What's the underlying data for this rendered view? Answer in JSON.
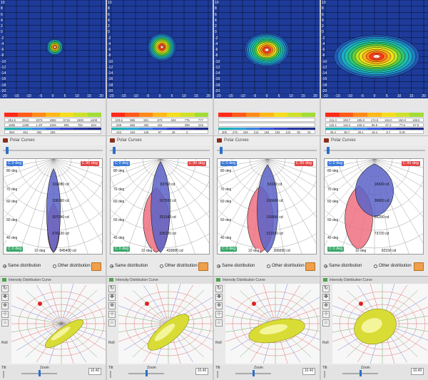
{
  "panels": [
    {
      "x_ticks": [
        "-20",
        "-15",
        "-10",
        "-5",
        "0",
        "5",
        "10",
        "15",
        "20"
      ],
      "y_ticks": [
        "10",
        "8",
        "6",
        "4",
        "2",
        "0",
        "-2",
        "-4",
        "-6",
        "-8",
        "-10",
        "-12",
        "-14",
        "-16",
        "-18",
        "-20"
      ],
      "scale_values_1": [
        "251.6",
        "2813",
        "3373",
        "1852",
        "5715",
        "1600",
        "1408"
      ],
      "scale_values_2": [
        "1960",
        "1258",
        "1 SP",
        "1006",
        "905",
        "784",
        "634"
      ],
      "scale_values_3": [
        "583",
        "451",
        "392",
        "283",
        "",
        "",
        ""
      ],
      "polar_title": "Polar Curves",
      "tag_c0": "C 0 deg",
      "tag_c90": "C 90 deg",
      "tag_c0_bottom": "C 0 deg",
      "deg_labels": [
        "80 deg",
        "70 deg",
        "60 deg",
        "50 deg",
        "40 deg"
      ],
      "deg_bottom": "10 deg",
      "cd_labels": [
        "169080 cd",
        "338160 cd",
        "507240 cd",
        "676320 cd",
        "845400 cd"
      ],
      "radio_same": "Same distribution",
      "radio_other": "Other distribution",
      "cone_title": "Intensity Distribution Curve",
      "roll_label": "Roll",
      "tilt_label": "Tilt",
      "zoom_label": "Zoom",
      "zoom_value": "10.40"
    },
    {
      "x_ticks": [
        "-20",
        "-15",
        "-10",
        "-5",
        "0",
        "5",
        "10",
        "15",
        "20"
      ],
      "y_ticks": [
        "10",
        "8",
        "6",
        "4",
        "2",
        "0",
        "-2",
        "-4",
        "-6",
        "-8",
        "-10",
        "-12",
        "-14",
        "-16",
        "-18",
        "-20"
      ],
      "scale_values_1": [
        "103.6",
        "965",
        "821",
        "673",
        "634",
        "775",
        "777"
      ],
      "scale_values_2": [
        "638",
        "582",
        "482",
        "433",
        "",
        "399",
        "225"
      ],
      "scale_values_3": [
        "242",
        "194",
        "145",
        "97",
        "48",
        "0",
        ""
      ],
      "polar_title": "Polar Curves",
      "tag_c0": "C 0 deg",
      "tag_c90": "C 90 deg",
      "tag_c0_bottom": "C 0 deg",
      "deg_labels": [
        "80 deg",
        "70 deg",
        "60 deg",
        "50 deg",
        "40 deg"
      ],
      "deg_bottom": "10 deg",
      "cd_labels": [
        "83780 cd",
        "167560 cd",
        "251340 cd",
        "335120 cd",
        "418900 cd"
      ],
      "radio_same": "Same distribution",
      "radio_other": "Other distribution",
      "cone_title": "Intensity Distribution Curve",
      "roll_label": "Roll",
      "tilt_label": "Tilt",
      "zoom_label": "Zoom",
      "zoom_value": "10.40"
    },
    {
      "x_ticks": [
        "-20",
        "-15",
        "-10",
        "-5",
        "0",
        "5",
        "10",
        "15",
        "20"
      ],
      "y_ticks": [
        "10",
        "8",
        "6",
        "4",
        "2",
        "0",
        "-2",
        "-4",
        "-6",
        "-8",
        "-10",
        "-12",
        "-14",
        "-16",
        "-18",
        "-20"
      ],
      "scale_values_1": [
        "",
        "",
        "",
        "",
        "",
        "",
        ""
      ],
      "scale_values_2": [
        "",
        "",
        "",
        "",
        "",
        "",
        ""
      ],
      "scale_values_3": [
        "306",
        "276",
        "245",
        "214",
        "184",
        "153",
        "122",
        "92",
        "61"
      ],
      "polar_title": "Polar Curves",
      "tag_c0": "C 0 deg",
      "tag_c90": "C 90 deg",
      "tag_c0_bottom": "C 0 deg",
      "deg_labels": [
        "80 deg",
        "70 deg",
        "60 deg",
        "50 deg",
        "40 deg"
      ],
      "deg_bottom": "10 deg",
      "cd_labels": [
        "53330 cd",
        "106660 cd",
        "159990 cd",
        "213320 cd",
        "266650 cd"
      ],
      "radio_same": "Same distribution",
      "radio_other": "Other distribution",
      "cone_title": "Intensity Distribution Curve",
      "roll_label": "Roll",
      "tilt_label": "Tilt",
      "zoom_label": "Zoom",
      "zoom_value": "10.40"
    },
    {
      "x_ticks": [
        "-20",
        "-15",
        "-10",
        "-5",
        "0",
        "5",
        "10",
        "15",
        "20"
      ],
      "y_ticks": [
        "10",
        "8",
        "6",
        "4",
        "2",
        "0",
        "-2",
        "-4",
        "-6",
        "-8",
        "-10",
        "-12",
        "-14",
        "-16",
        "-18",
        "-20"
      ],
      "scale_values_1": [
        "211.4",
        "193.7",
        "185.8",
        "174.9",
        "164.0",
        "150.0",
        "136.6"
      ],
      "scale_values_2": [
        "125.1",
        "116.2",
        "105.3",
        "96.9",
        "87.2",
        "77.5",
        "67.8"
      ],
      "scale_values_3": [
        "49.4",
        "38.7",
        "29.1",
        "19.4",
        "9.7",
        "0.00",
        ""
      ],
      "polar_title": "Polar Curves",
      "tag_c0": "C 0 deg",
      "tag_c90": "C 90 deg",
      "tag_c0_bottom": "C 0 deg",
      "deg_labels": [
        "80 deg",
        "70 deg",
        "60 deg",
        "50 deg",
        "40 deg"
      ],
      "deg_bottom": "10 deg",
      "cd_labels": [
        "18430 cd",
        "36860 cd",
        "55290 cd",
        "73720 cd",
        "92150 cd"
      ],
      "radio_same": "Same distribution",
      "radio_other": "Other distribution",
      "cone_title": "Intensity Distribution Curve",
      "roll_label": "Roll",
      "tilt_label": "Tilt",
      "zoom_label": "Zoom",
      "zoom_value": "10.40"
    }
  ],
  "colors": {
    "map_background": "#1e3b9a",
    "c0_fill": "#5a63c8",
    "c90_fill": "#f07080",
    "cone_yellow": "#d9dc35"
  }
}
